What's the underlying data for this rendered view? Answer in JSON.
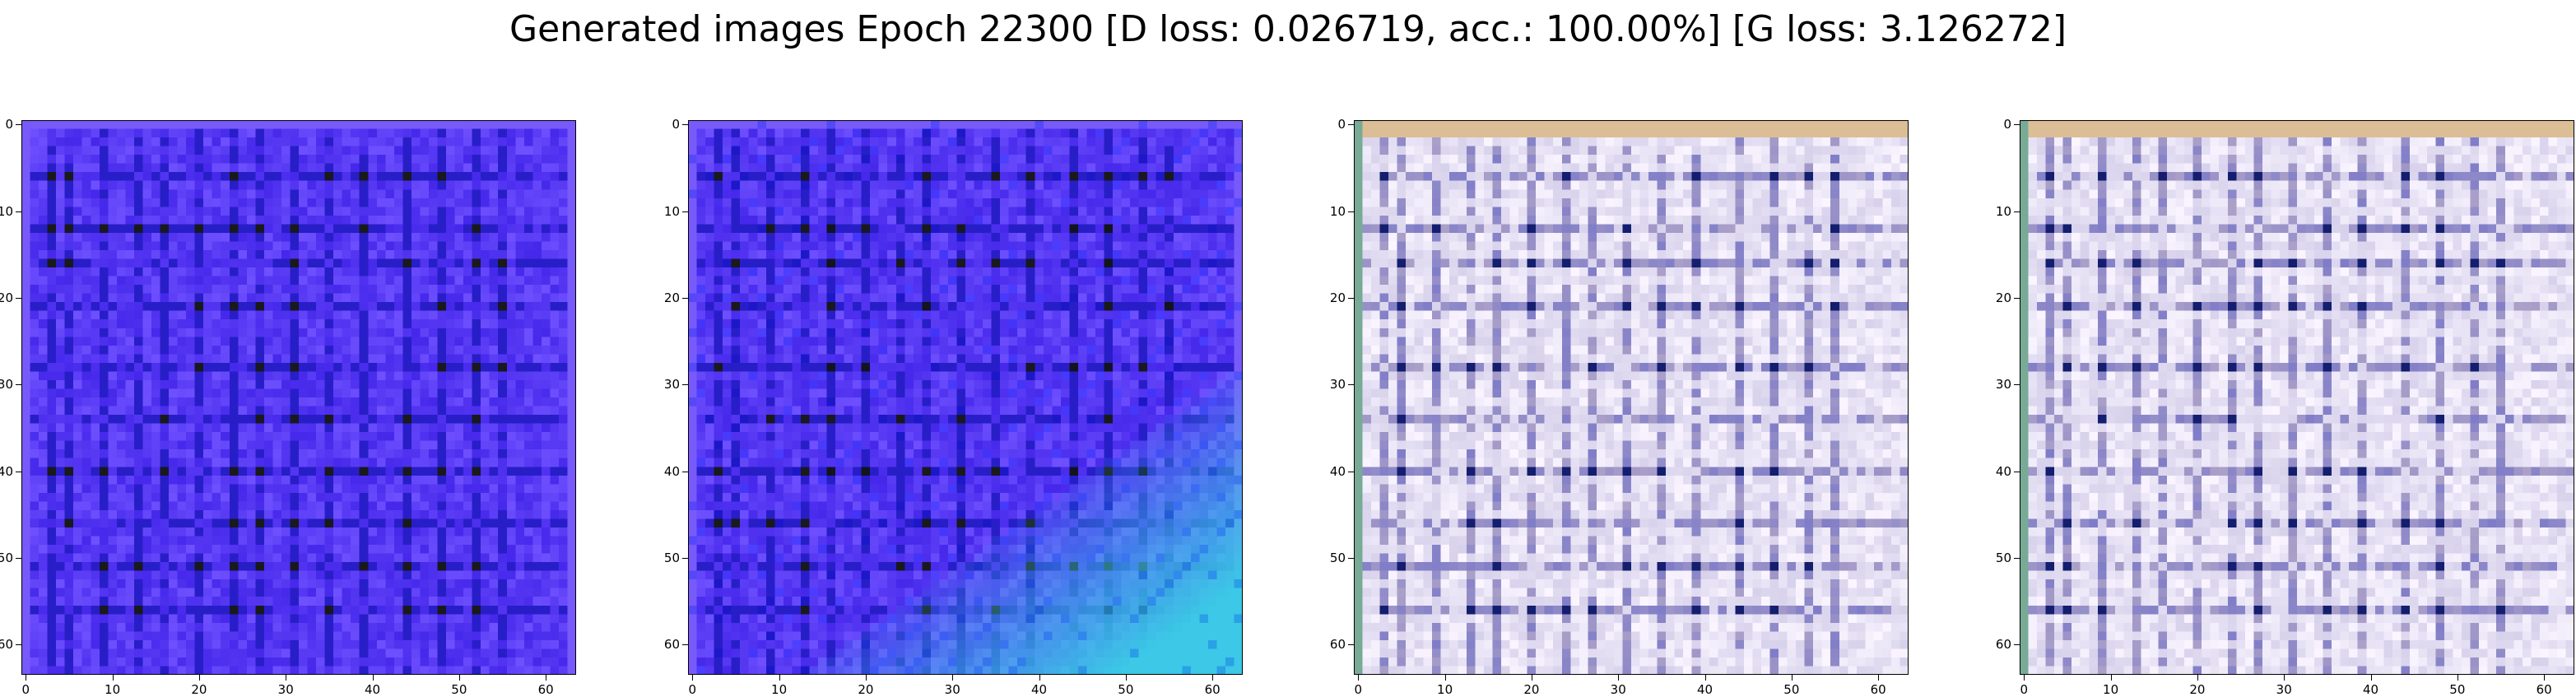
{
  "title": "Generated images Epoch 22300 [D loss: 0.026719, acc.: 100.00%] [G loss: 3.126272]",
  "axes": {
    "x_ticks": [
      "0",
      "10",
      "20",
      "30",
      "40",
      "50",
      "60"
    ],
    "y_ticks": [
      "0",
      "10",
      "20",
      "30",
      "40",
      "50",
      "60"
    ]
  },
  "panels": [
    {
      "palette": "blue"
    },
    {
      "palette": "blue-cyan"
    },
    {
      "palette": "pale"
    },
    {
      "palette": "pale"
    }
  ]
}
